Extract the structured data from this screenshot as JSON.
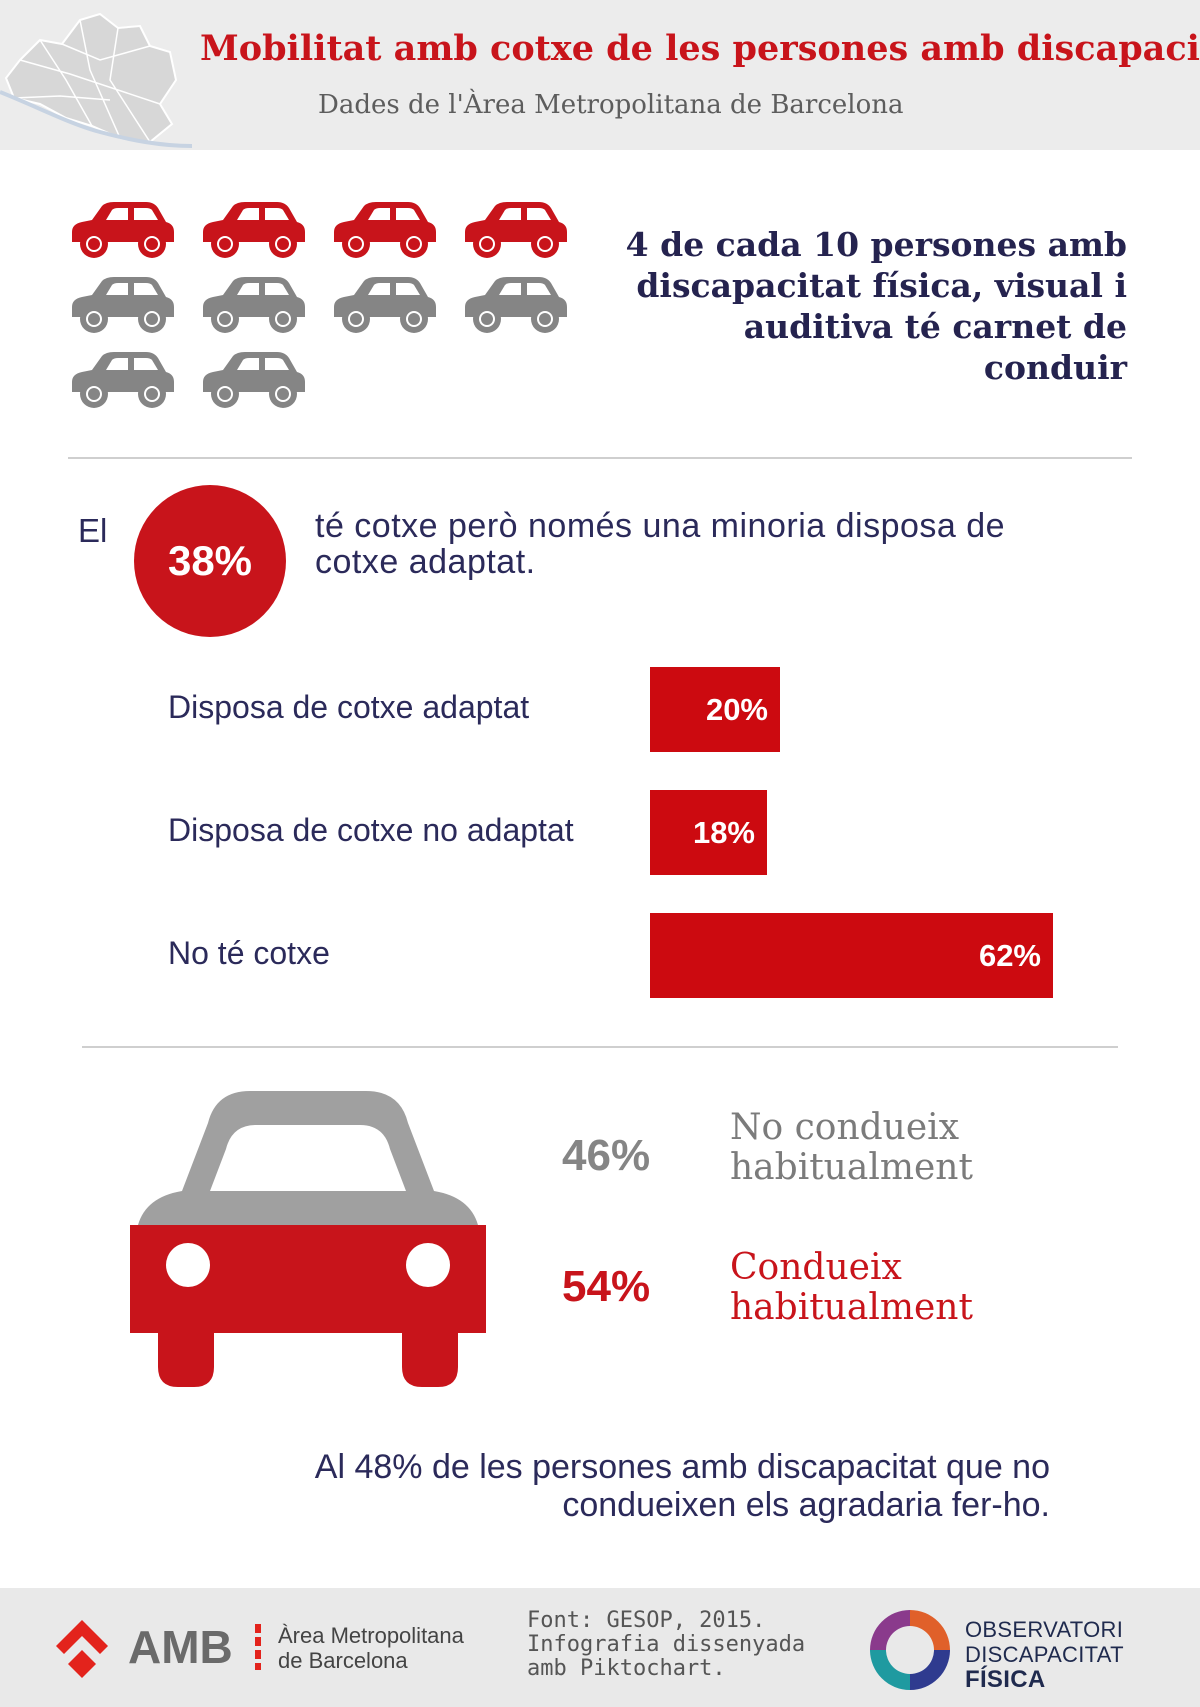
{
  "header": {
    "title": "Mobilitat amb cotxe de les persones amb discapacitat",
    "subtitle": "Dades de l'Àrea Metropolitana de Barcelona"
  },
  "license": {
    "text": "4 de cada 10 persones amb discapacitat física, visual i auditiva té carnet de conduir",
    "highlighted": 4,
    "total": 10,
    "colors": {
      "highlight": "#c8141b",
      "rest": "#858585"
    }
  },
  "car_ownership": {
    "prefix": "El",
    "percent": "38%",
    "text": "té cotxe però només una minoria disposa de cotxe adaptat."
  },
  "chart_data": {
    "type": "bar",
    "orientation": "horizontal",
    "categories": [
      "Disposa de cotxe adaptat",
      "Disposa de cotxe no adaptat",
      "No té cotxe"
    ],
    "values": [
      20,
      18,
      62
    ],
    "value_labels": [
      "20%",
      "18%",
      "62%"
    ],
    "xlim": [
      0,
      100
    ],
    "color": "#cc0a10"
  },
  "driving": {
    "no": {
      "value": "46%",
      "label": "No condueix habitualment",
      "color": "#858585"
    },
    "yes": {
      "value": "54%",
      "label": "Condueix habitualment",
      "color": "#c8141b"
    }
  },
  "footnote": "Al 48% de les persones amb discapacitat que no condueixen els agradaria fer-ho.",
  "footer": {
    "amb_abbr": "AMB",
    "amb_name_line1": "Àrea Metropolitana",
    "amb_name_line2": "de Barcelona",
    "credit_line1": "Font: GESOP, 2015.",
    "credit_line2": "Infografia dissenyada",
    "credit_line3": "amb Piktochart.",
    "obs_line1": "OBSERVATORI",
    "obs_line2": "DISCAPACITAT",
    "obs_line3": "FÍSICA"
  }
}
